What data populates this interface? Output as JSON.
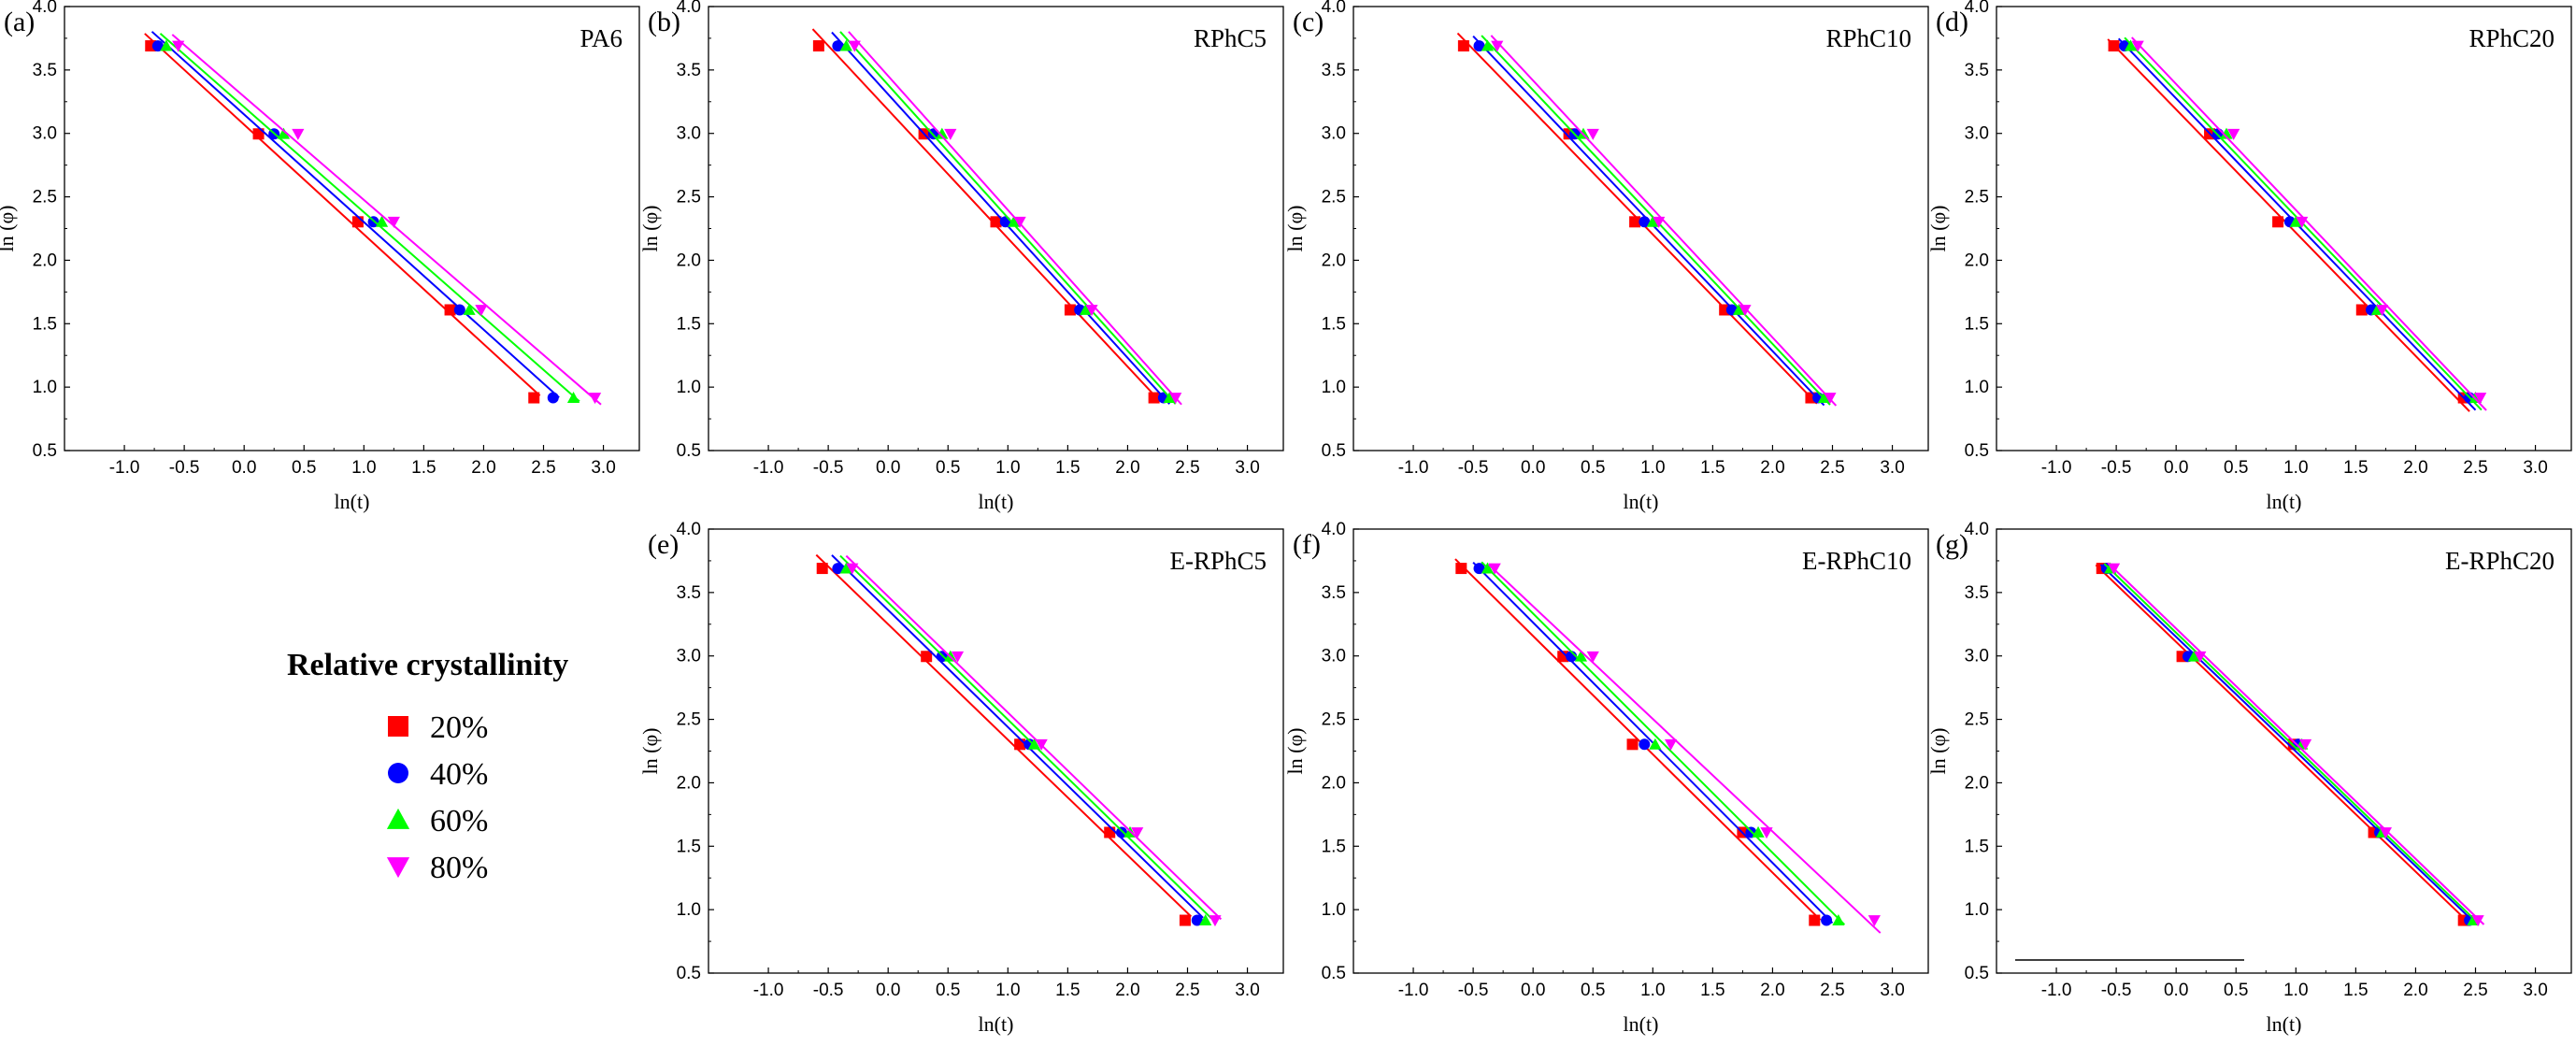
{
  "legend": {
    "title": "Relative crystallinity",
    "entries": [
      {
        "label": "20%",
        "color": "#ff0000",
        "marker": "square"
      },
      {
        "label": "40%",
        "color": "#0000ff",
        "marker": "circle"
      },
      {
        "label": "60%",
        "color": "#00ff00",
        "marker": "triangle-up"
      },
      {
        "label": "80%",
        "color": "#ff00ff",
        "marker": "triangle-down"
      }
    ]
  },
  "chart_data": [
    {
      "type": "scatter",
      "panel": "(a)",
      "title": "PA6",
      "xlabel": "ln(t)",
      "ylabel": "ln (φ)",
      "xlim": [
        -1.5,
        3.3
      ],
      "ylim": [
        0.5,
        4.0
      ],
      "xticks": [
        "-1.0",
        "-0.5",
        "0.0",
        "0.5",
        "1.0",
        "1.5",
        "2.0",
        "2.5",
        "3.0"
      ],
      "yticks": [
        "0.5",
        "1.0",
        "1.5",
        "2.0",
        "2.5",
        "3.0",
        "3.5",
        "4.0"
      ],
      "y": [
        3.69,
        2.996,
        2.303,
        1.609,
        0.916
      ],
      "series": [
        {
          "name": "20%",
          "x": [
            -0.78,
            0.12,
            0.95,
            1.72,
            2.42
          ]
        },
        {
          "name": "40%",
          "x": [
            -0.72,
            0.25,
            1.08,
            1.8,
            2.58
          ]
        },
        {
          "name": "60%",
          "x": [
            -0.65,
            0.33,
            1.15,
            1.88,
            2.75
          ]
        },
        {
          "name": "80%",
          "x": [
            -0.55,
            0.45,
            1.25,
            1.98,
            2.93
          ]
        }
      ],
      "baseline": false
    },
    {
      "type": "scatter",
      "panel": "(b)",
      "title": "RPhC5",
      "xlabel": "ln(t)",
      "ylabel": "ln (φ)",
      "xlim": [
        -1.5,
        3.3
      ],
      "ylim": [
        0.5,
        4.0
      ],
      "xticks": [
        "-1.0",
        "-0.5",
        "0.0",
        "0.5",
        "1.0",
        "1.5",
        "2.0",
        "2.5",
        "3.0"
      ],
      "yticks": [
        "0.5",
        "1.0",
        "1.5",
        "2.0",
        "2.5",
        "3.0",
        "3.5",
        "4.0"
      ],
      "y": [
        3.69,
        2.996,
        2.303,
        1.609,
        0.916
      ],
      "series": [
        {
          "name": "20%",
          "x": [
            -0.58,
            0.3,
            0.9,
            1.52,
            2.22
          ]
        },
        {
          "name": "40%",
          "x": [
            -0.42,
            0.38,
            0.98,
            1.6,
            2.3
          ]
        },
        {
          "name": "60%",
          "x": [
            -0.35,
            0.45,
            1.05,
            1.65,
            2.35
          ]
        },
        {
          "name": "80%",
          "x": [
            -0.28,
            0.52,
            1.1,
            1.7,
            2.4
          ]
        }
      ],
      "baseline": false
    },
    {
      "type": "scatter",
      "panel": "(c)",
      "title": "RPhC10",
      "xlabel": "ln(t)",
      "ylabel": "ln (φ)",
      "xlim": [
        -1.5,
        3.3
      ],
      "ylim": [
        0.5,
        4.0
      ],
      "xticks": [
        "-1.0",
        "-0.5",
        "0.0",
        "0.5",
        "1.0",
        "1.5",
        "2.0",
        "2.5",
        "3.0"
      ],
      "yticks": [
        "0.5",
        "1.0",
        "1.5",
        "2.0",
        "2.5",
        "3.0",
        "3.5",
        "4.0"
      ],
      "y": [
        3.69,
        2.996,
        2.303,
        1.609,
        0.916
      ],
      "series": [
        {
          "name": "20%",
          "x": [
            -0.58,
            0.3,
            0.85,
            1.6,
            2.32
          ]
        },
        {
          "name": "40%",
          "x": [
            -0.45,
            0.35,
            0.93,
            1.66,
            2.38
          ]
        },
        {
          "name": "60%",
          "x": [
            -0.38,
            0.42,
            1.0,
            1.72,
            2.43
          ]
        },
        {
          "name": "80%",
          "x": [
            -0.3,
            0.5,
            1.05,
            1.77,
            2.48
          ]
        }
      ],
      "baseline": false
    },
    {
      "type": "scatter",
      "panel": "(d)",
      "title": "RPhC20",
      "xlabel": "ln(t)",
      "ylabel": "ln (φ)",
      "xlim": [
        -1.5,
        3.3
      ],
      "ylim": [
        0.5,
        4.0
      ],
      "xticks": [
        "-1.0",
        "-0.5",
        "0.0",
        "0.5",
        "1.0",
        "1.5",
        "2.0",
        "2.5",
        "3.0"
      ],
      "yticks": [
        "0.5",
        "1.0",
        "1.5",
        "2.0",
        "2.5",
        "3.0",
        "3.5",
        "4.0"
      ],
      "y": [
        3.69,
        2.996,
        2.303,
        1.609,
        0.916
      ],
      "series": [
        {
          "name": "20%",
          "x": [
            -0.52,
            0.28,
            0.85,
            1.55,
            2.4
          ]
        },
        {
          "name": "40%",
          "x": [
            -0.43,
            0.35,
            0.95,
            1.63,
            2.45
          ]
        },
        {
          "name": "60%",
          "x": [
            -0.38,
            0.42,
            1.0,
            1.68,
            2.5
          ]
        },
        {
          "name": "80%",
          "x": [
            -0.32,
            0.48,
            1.05,
            1.72,
            2.54
          ]
        }
      ],
      "baseline": false
    },
    {
      "type": "scatter",
      "panel": "(e)",
      "title": "E-RPhC5",
      "xlabel": "ln(t)",
      "ylabel": "ln (φ)",
      "xlim": [
        -1.5,
        3.3
      ],
      "ylim": [
        0.5,
        4.0
      ],
      "xticks": [
        "-1.0",
        "-0.5",
        "0.0",
        "0.5",
        "1.0",
        "1.5",
        "2.0",
        "2.5",
        "3.0"
      ],
      "yticks": [
        "0.5",
        "1.0",
        "1.5",
        "2.0",
        "2.5",
        "3.0",
        "3.5",
        "4.0"
      ],
      "y": [
        3.69,
        2.996,
        2.303,
        1.609,
        0.916
      ],
      "series": [
        {
          "name": "20%",
          "x": [
            -0.55,
            0.32,
            1.1,
            1.85,
            2.48
          ]
        },
        {
          "name": "40%",
          "x": [
            -0.42,
            0.45,
            1.18,
            1.95,
            2.58
          ]
        },
        {
          "name": "60%",
          "x": [
            -0.35,
            0.52,
            1.22,
            2.02,
            2.65
          ]
        },
        {
          "name": "80%",
          "x": [
            -0.3,
            0.58,
            1.28,
            2.08,
            2.73
          ]
        }
      ],
      "baseline": false
    },
    {
      "type": "scatter",
      "panel": "(f)",
      "title": "E-RPhC10",
      "xlabel": "ln(t)",
      "ylabel": "ln (φ)",
      "xlim": [
        -1.5,
        3.3
      ],
      "ylim": [
        0.5,
        4.0
      ],
      "xticks": [
        "-1.0",
        "-0.5",
        "0.0",
        "0.5",
        "1.0",
        "1.5",
        "2.0",
        "2.5",
        "3.0"
      ],
      "yticks": [
        "0.5",
        "1.0",
        "1.5",
        "2.0",
        "2.5",
        "3.0",
        "3.5",
        "4.0"
      ],
      "y": [
        3.69,
        2.996,
        2.303,
        1.609,
        0.916
      ],
      "series": [
        {
          "name": "20%",
          "x": [
            -0.6,
            0.25,
            0.83,
            1.75,
            2.35
          ]
        },
        {
          "name": "40%",
          "x": [
            -0.45,
            0.32,
            0.93,
            1.82,
            2.45
          ]
        },
        {
          "name": "60%",
          "x": [
            -0.38,
            0.4,
            1.02,
            1.88,
            2.55
          ]
        },
        {
          "name": "80%",
          "x": [
            -0.32,
            0.5,
            1.15,
            1.95,
            2.85
          ]
        }
      ],
      "baseline": false
    },
    {
      "type": "scatter",
      "panel": "(g)",
      "title": "E-RPhC20",
      "xlabel": "ln(t)",
      "ylabel": "ln (φ)",
      "xlim": [
        -1.5,
        3.3
      ],
      "ylim": [
        0.5,
        4.0
      ],
      "xticks": [
        "-1.0",
        "-0.5",
        "0.0",
        "0.5",
        "1.0",
        "1.5",
        "2.0",
        "2.5",
        "3.0"
      ],
      "yticks": [
        "0.5",
        "1.0",
        "1.5",
        "2.0",
        "2.5",
        "3.0",
        "3.5",
        "4.0"
      ],
      "y": [
        3.69,
        2.996,
        2.303,
        1.609,
        0.916
      ],
      "series": [
        {
          "name": "20%",
          "x": [
            -0.62,
            0.05,
            0.98,
            1.65,
            2.4
          ]
        },
        {
          "name": "40%",
          "x": [
            -0.58,
            0.1,
            1.02,
            1.7,
            2.45
          ]
        },
        {
          "name": "60%",
          "x": [
            -0.55,
            0.15,
            1.05,
            1.72,
            2.48
          ]
        },
        {
          "name": "80%",
          "x": [
            -0.52,
            0.2,
            1.08,
            1.75,
            2.52
          ]
        }
      ],
      "baseline": true
    }
  ]
}
